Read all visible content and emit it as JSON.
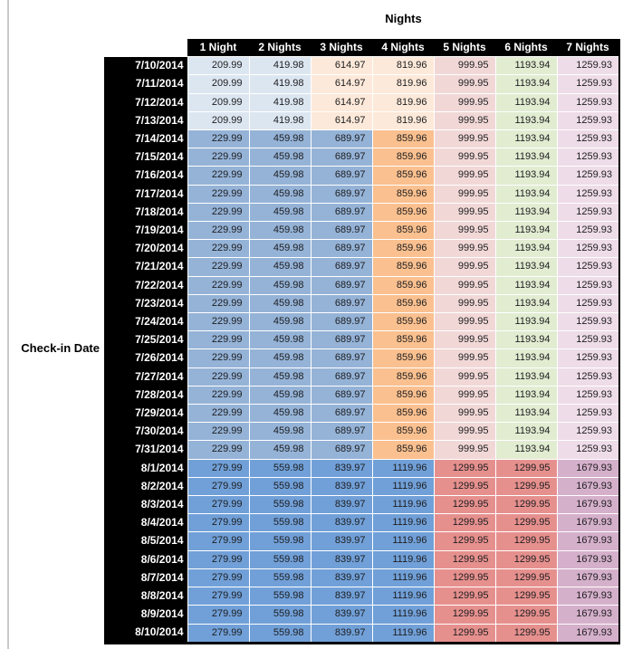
{
  "colors": {
    "header_bg": "#000000",
    "header_text": "#ffffff",
    "cell_text": "#1d1d1f",
    "gridline": "#ffffff",
    "outer_border": "#000000",
    "window_edge_line": "#c9c9c9",
    "band_low_blue": "#dce6f1",
    "band_low_cream": "#fde9d9",
    "band_mid_blue": "#95b3d7",
    "band_mid_orange": "#fac08f",
    "band_rose": "#f1d8d7",
    "band_green": "#e1ecd1",
    "band_pink": "#eedce8",
    "band_high_blue": "#71a0d8",
    "band_high_red": "#e6908e",
    "band_high_mauve": "#d5b0cb"
  },
  "chart_data": {
    "type": "table",
    "title": "Nights",
    "row_axis_label": "Check-in Date",
    "columns": [
      "1 Night",
      "2 Nights",
      "3 Nights",
      "4 Nights",
      "5 Nights",
      "6 Nights",
      "7 Nights"
    ],
    "bands": {
      "low": {
        "date_range": "7/10/2014 - 7/13/2014",
        "cell_colors": [
          "#dce6f1",
          "#dce6f1",
          "#fde9d9",
          "#fde9d9",
          "#f1d8d7",
          "#e1ecd1",
          "#eedce8"
        ]
      },
      "mid": {
        "date_range": "7/14/2014 - 7/31/2014",
        "cell_colors": [
          "#95b3d7",
          "#95b3d7",
          "#95b3d7",
          "#fac08f",
          "#f1d8d7",
          "#e1ecd1",
          "#eedce8"
        ]
      },
      "high": {
        "date_range": "8/1/2014 - 8/10/2014",
        "cell_colors": [
          "#71a0d8",
          "#71a0d8",
          "#71a0d8",
          "#71a0d8",
          "#e6908e",
          "#e6908e",
          "#d5b0cb"
        ]
      }
    },
    "rows": [
      {
        "date": "7/10/2014",
        "band": "low",
        "values": [
          "209.99",
          "419.98",
          "614.97",
          "819.96",
          "999.95",
          "1193.94",
          "1259.93"
        ]
      },
      {
        "date": "7/11/2014",
        "band": "low",
        "values": [
          "209.99",
          "419.98",
          "614.97",
          "819.96",
          "999.95",
          "1193.94",
          "1259.93"
        ]
      },
      {
        "date": "7/12/2014",
        "band": "low",
        "values": [
          "209.99",
          "419.98",
          "614.97",
          "819.96",
          "999.95",
          "1193.94",
          "1259.93"
        ]
      },
      {
        "date": "7/13/2014",
        "band": "low",
        "values": [
          "209.99",
          "419.98",
          "614.97",
          "819.96",
          "999.95",
          "1193.94",
          "1259.93"
        ]
      },
      {
        "date": "7/14/2014",
        "band": "mid",
        "values": [
          "229.99",
          "459.98",
          "689.97",
          "859.96",
          "999.95",
          "1193.94",
          "1259.93"
        ]
      },
      {
        "date": "7/15/2014",
        "band": "mid",
        "values": [
          "229.99",
          "459.98",
          "689.97",
          "859.96",
          "999.95",
          "1193.94",
          "1259.93"
        ]
      },
      {
        "date": "7/16/2014",
        "band": "mid",
        "values": [
          "229.99",
          "459.98",
          "689.97",
          "859.96",
          "999.95",
          "1193.94",
          "1259.93"
        ]
      },
      {
        "date": "7/17/2014",
        "band": "mid",
        "values": [
          "229.99",
          "459.98",
          "689.97",
          "859.96",
          "999.95",
          "1193.94",
          "1259.93"
        ]
      },
      {
        "date": "7/18/2014",
        "band": "mid",
        "values": [
          "229.99",
          "459.98",
          "689.97",
          "859.96",
          "999.95",
          "1193.94",
          "1259.93"
        ]
      },
      {
        "date": "7/19/2014",
        "band": "mid",
        "values": [
          "229.99",
          "459.98",
          "689.97",
          "859.96",
          "999.95",
          "1193.94",
          "1259.93"
        ]
      },
      {
        "date": "7/20/2014",
        "band": "mid",
        "values": [
          "229.99",
          "459.98",
          "689.97",
          "859.96",
          "999.95",
          "1193.94",
          "1259.93"
        ]
      },
      {
        "date": "7/21/2014",
        "band": "mid",
        "values": [
          "229.99",
          "459.98",
          "689.97",
          "859.96",
          "999.95",
          "1193.94",
          "1259.93"
        ]
      },
      {
        "date": "7/22/2014",
        "band": "mid",
        "values": [
          "229.99",
          "459.98",
          "689.97",
          "859.96",
          "999.95",
          "1193.94",
          "1259.93"
        ]
      },
      {
        "date": "7/23/2014",
        "band": "mid",
        "values": [
          "229.99",
          "459.98",
          "689.97",
          "859.96",
          "999.95",
          "1193.94",
          "1259.93"
        ]
      },
      {
        "date": "7/24/2014",
        "band": "mid",
        "values": [
          "229.99",
          "459.98",
          "689.97",
          "859.96",
          "999.95",
          "1193.94",
          "1259.93"
        ]
      },
      {
        "date": "7/25/2014",
        "band": "mid",
        "values": [
          "229.99",
          "459.98",
          "689.97",
          "859.96",
          "999.95",
          "1193.94",
          "1259.93"
        ]
      },
      {
        "date": "7/26/2014",
        "band": "mid",
        "values": [
          "229.99",
          "459.98",
          "689.97",
          "859.96",
          "999.95",
          "1193.94",
          "1259.93"
        ]
      },
      {
        "date": "7/27/2014",
        "band": "mid",
        "values": [
          "229.99",
          "459.98",
          "689.97",
          "859.96",
          "999.95",
          "1193.94",
          "1259.93"
        ]
      },
      {
        "date": "7/28/2014",
        "band": "mid",
        "values": [
          "229.99",
          "459.98",
          "689.97",
          "859.96",
          "999.95",
          "1193.94",
          "1259.93"
        ]
      },
      {
        "date": "7/29/2014",
        "band": "mid",
        "values": [
          "229.99",
          "459.98",
          "689.97",
          "859.96",
          "999.95",
          "1193.94",
          "1259.93"
        ]
      },
      {
        "date": "7/30/2014",
        "band": "mid",
        "values": [
          "229.99",
          "459.98",
          "689.97",
          "859.96",
          "999.95",
          "1193.94",
          "1259.93"
        ]
      },
      {
        "date": "7/31/2014",
        "band": "mid",
        "values": [
          "229.99",
          "459.98",
          "689.97",
          "859.96",
          "999.95",
          "1193.94",
          "1259.93"
        ]
      },
      {
        "date": "8/1/2014",
        "band": "high",
        "values": [
          "279.99",
          "559.98",
          "839.97",
          "1119.96",
          "1299.95",
          "1299.95",
          "1679.93"
        ]
      },
      {
        "date": "8/2/2014",
        "band": "high",
        "values": [
          "279.99",
          "559.98",
          "839.97",
          "1119.96",
          "1299.95",
          "1299.95",
          "1679.93"
        ]
      },
      {
        "date": "8/3/2014",
        "band": "high",
        "values": [
          "279.99",
          "559.98",
          "839.97",
          "1119.96",
          "1299.95",
          "1299.95",
          "1679.93"
        ]
      },
      {
        "date": "8/4/2014",
        "band": "high",
        "values": [
          "279.99",
          "559.98",
          "839.97",
          "1119.96",
          "1299.95",
          "1299.95",
          "1679.93"
        ]
      },
      {
        "date": "8/5/2014",
        "band": "high",
        "values": [
          "279.99",
          "559.98",
          "839.97",
          "1119.96",
          "1299.95",
          "1299.95",
          "1679.93"
        ]
      },
      {
        "date": "8/6/2014",
        "band": "high",
        "values": [
          "279.99",
          "559.98",
          "839.97",
          "1119.96",
          "1299.95",
          "1299.95",
          "1679.93"
        ]
      },
      {
        "date": "8/7/2014",
        "band": "high",
        "values": [
          "279.99",
          "559.98",
          "839.97",
          "1119.96",
          "1299.95",
          "1299.95",
          "1679.93"
        ]
      },
      {
        "date": "8/8/2014",
        "band": "high",
        "values": [
          "279.99",
          "559.98",
          "839.97",
          "1119.96",
          "1299.95",
          "1299.95",
          "1679.93"
        ]
      },
      {
        "date": "8/9/2014",
        "band": "high",
        "values": [
          "279.99",
          "559.98",
          "839.97",
          "1119.96",
          "1299.95",
          "1299.95",
          "1679.93"
        ]
      },
      {
        "date": "8/10/2014",
        "band": "high",
        "values": [
          "279.99",
          "559.98",
          "839.97",
          "1119.96",
          "1299.95",
          "1299.95",
          "1679.93"
        ]
      }
    ]
  }
}
